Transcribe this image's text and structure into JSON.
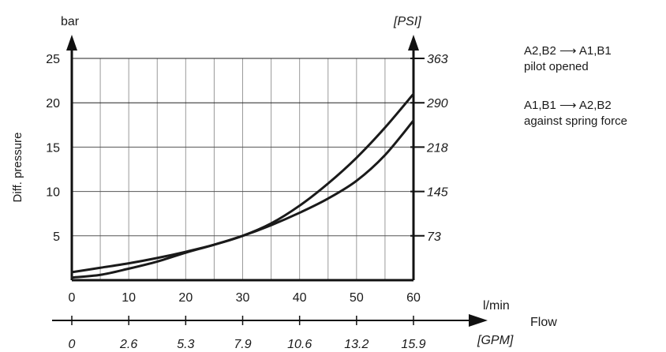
{
  "chart_data": {
    "type": "line",
    "xlabel": "Flow",
    "x_unit": "l/min",
    "x_unit_secondary": "[GPM]",
    "ylabel": "Diff. pressure",
    "y_unit": "bar",
    "y_unit_secondary": "[PSI]",
    "xlim": [
      0,
      60
    ],
    "ylim": [
      0,
      25
    ],
    "x_ticks": [
      "0",
      "10",
      "20",
      "30",
      "40",
      "50",
      "60"
    ],
    "x_ticks_secondary": [
      "0",
      "2.6",
      "5.3",
      "7.9",
      "10.6",
      "13.2",
      "15.9"
    ],
    "y_ticks": [
      "5",
      "10",
      "15",
      "20",
      "25"
    ],
    "y_ticks_secondary": [
      "73",
      "145",
      "218",
      "290",
      "363"
    ],
    "grid": true,
    "legend": {
      "placement": "right",
      "entries": [
        {
          "line1": "A2,B2 ⟶ A1,B1",
          "line2": "pilot opened"
        },
        {
          "line1": "A1,B1 ⟶ A2,B2",
          "line2": "against spring force"
        }
      ]
    },
    "series": [
      {
        "x": [
          0,
          5,
          10,
          15,
          20,
          25,
          30,
          35,
          40,
          45,
          50,
          55,
          60
        ],
        "y": [
          0.3,
          0.6,
          1.3,
          2.1,
          3.1,
          4.0,
          5.0,
          6.4,
          8.4,
          10.9,
          13.8,
          17.2,
          21.0
        ]
      },
      {
        "x": [
          0,
          5,
          10,
          15,
          20,
          25,
          30,
          35,
          40,
          45,
          50,
          55,
          60
        ],
        "y": [
          0.9,
          1.4,
          1.9,
          2.5,
          3.2,
          4.0,
          5.0,
          6.2,
          7.6,
          9.2,
          11.2,
          14.1,
          18.0
        ]
      }
    ],
    "colors": {
      "line": "#1a1a1a",
      "grid": "#9a9a9a",
      "axis": "#111111"
    }
  }
}
